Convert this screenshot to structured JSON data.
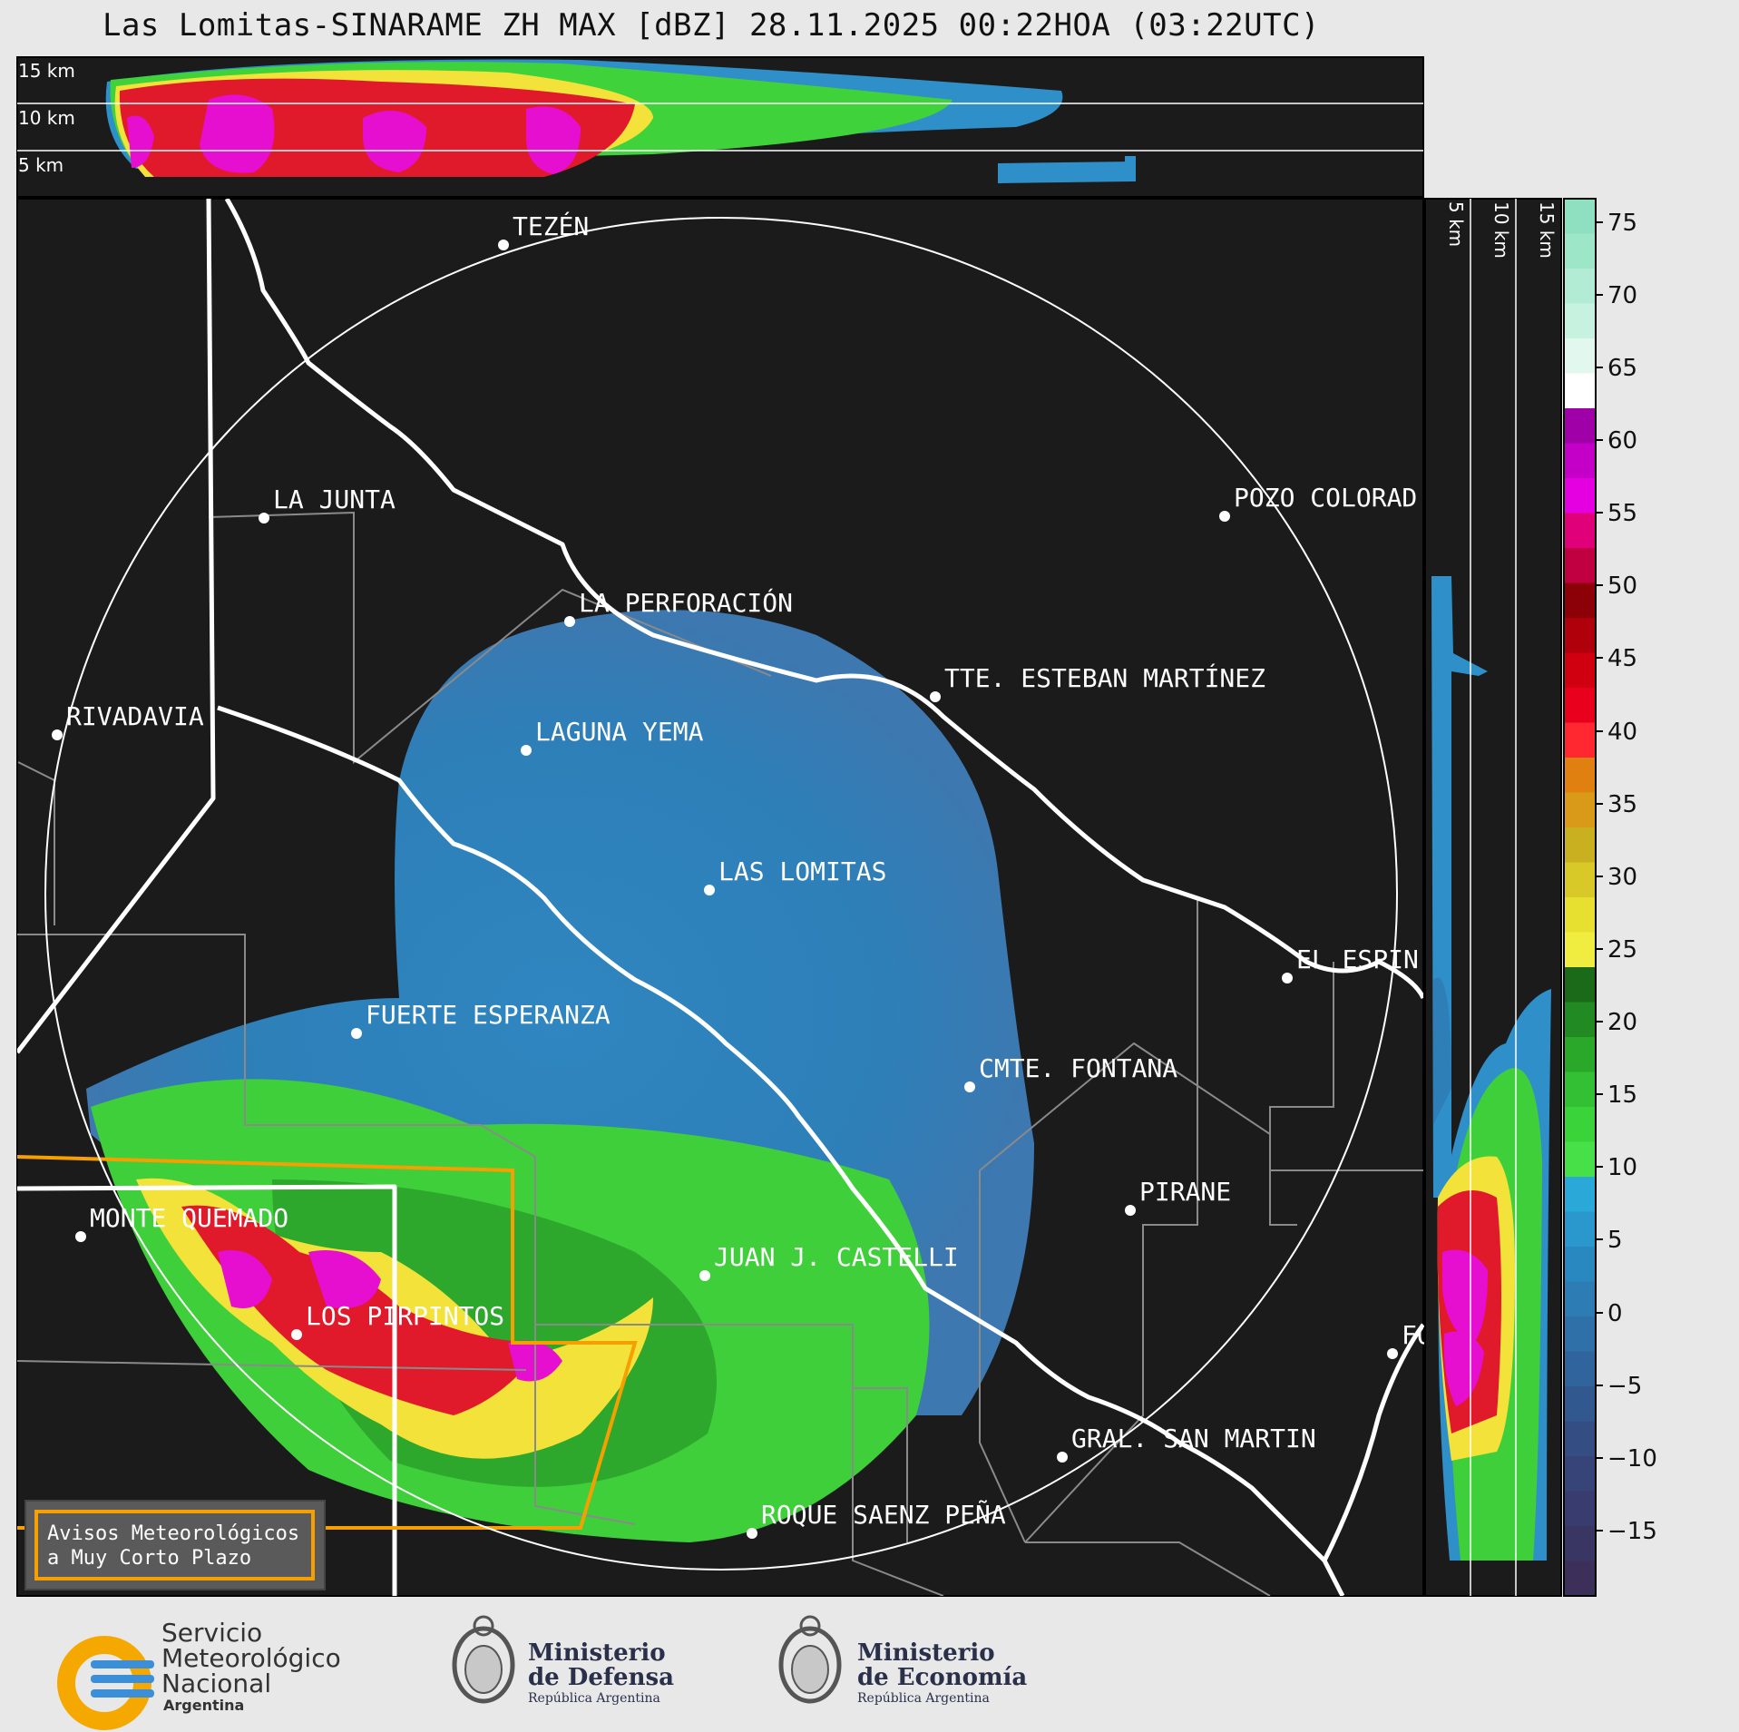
{
  "title": "Las Lomitas-SINARAME ZH MAX [dBZ] 28.11.2025 00:22HOA (03:22UTC)",
  "top_panel_labels": [
    "15 km",
    "10 km",
    "5 km"
  ],
  "side_panel_labels": [
    "5 km",
    "10 km",
    "15 km"
  ],
  "colorbar_ticks": [
    "75",
    "70",
    "65",
    "60",
    "55",
    "50",
    "45",
    "40",
    "35",
    "30",
    "25",
    "20",
    "15",
    "10",
    "5",
    "0",
    "−5",
    "−10",
    "−15"
  ],
  "places": [
    {
      "name": "TEZÉN"
    },
    {
      "name": "LA JUNTA"
    },
    {
      "name": "POZO COLORAD"
    },
    {
      "name": "LA PERFORACIÓN"
    },
    {
      "name": "TTE. ESTEBAN MARTÍNEZ"
    },
    {
      "name": "RIVADAVIA"
    },
    {
      "name": "LAGUNA YEMA"
    },
    {
      "name": "LAS LOMITAS"
    },
    {
      "name": "EL ESPIN"
    },
    {
      "name": "FUERTE ESPERANZA"
    },
    {
      "name": "CMTE. FONTANA"
    },
    {
      "name": "PIRANE"
    },
    {
      "name": "MONTE QUEMADO"
    },
    {
      "name": "JUAN J. CASTELLI"
    },
    {
      "name": "LOS PIRPINTOS"
    },
    {
      "name": "GRAL. SAN MARTIN"
    },
    {
      "name": "ROQUE SAENZ PEÑA"
    },
    {
      "name": "FO"
    }
  ],
  "warning_box": {
    "line1": "Avisos Meteorológicos",
    "line2": "a Muy Corto Plazo"
  },
  "logos": {
    "smn": {
      "line1": "Servicio",
      "line2": "Meteorológico",
      "line3": "Nacional",
      "line4": "Argentina"
    },
    "defensa": {
      "line1": "Ministerio",
      "line2": "de Defensa",
      "line3": "República Argentina"
    },
    "economia": {
      "line1": "Ministerio",
      "line2": "de Economía",
      "line3": "República Argentina"
    }
  },
  "colors": {
    "background": "#1b1b1b",
    "province_border": "#ffffff",
    "dept_border": "#8a8a8a",
    "warning_orange": "#f5a000",
    "smn_yellow": "#f5a800",
    "smn_blue": "#3a8fd8"
  }
}
